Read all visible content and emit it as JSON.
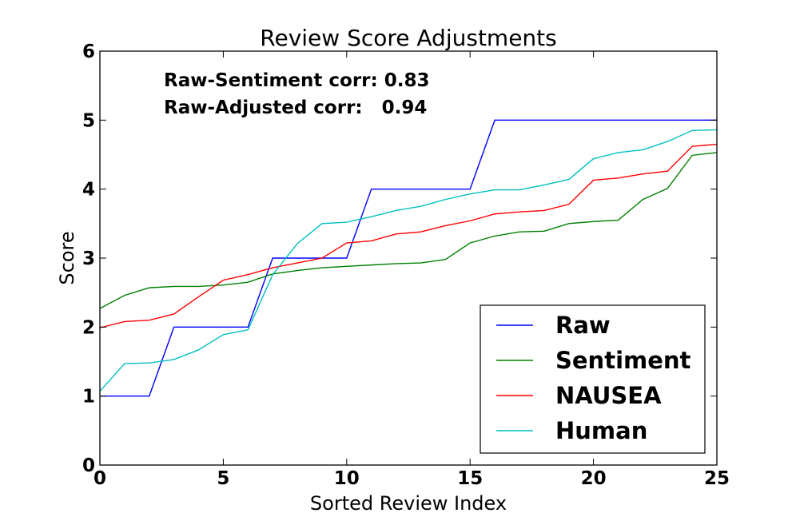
{
  "chart_data": {
    "type": "line",
    "title": "Review Score Adjustments",
    "xlabel": "Sorted Review Index",
    "ylabel": "Score",
    "xlim": [
      0,
      25
    ],
    "ylim": [
      0,
      6
    ],
    "xticks": [
      0,
      5,
      10,
      15,
      20,
      25
    ],
    "yticks": [
      0,
      1,
      2,
      3,
      4,
      5,
      6
    ],
    "grid": false,
    "legend_position": "lower-right",
    "annotations": [
      "Raw-Sentiment corr: 0.83",
      "Raw-Adjusted corr:   0.94"
    ],
    "x": [
      0,
      1,
      2,
      3,
      4,
      5,
      6,
      7,
      8,
      9,
      10,
      11,
      12,
      13,
      14,
      15,
      16,
      17,
      18,
      19,
      20,
      21,
      22,
      23,
      24,
      25
    ],
    "series": [
      {
        "name": "Raw",
        "color": "#0000ff",
        "values": [
          1,
          1,
          1,
          2,
          2,
          2,
          2,
          3,
          3,
          3,
          3,
          4,
          4,
          4,
          4,
          4,
          5,
          5,
          5,
          5,
          5,
          5,
          5,
          5,
          5,
          5
        ]
      },
      {
        "name": "Sentiment",
        "color": "#008000",
        "values": [
          2.27,
          2.46,
          2.57,
          2.59,
          2.59,
          2.61,
          2.65,
          2.77,
          2.82,
          2.86,
          2.88,
          2.9,
          2.92,
          2.93,
          2.98,
          3.22,
          3.32,
          3.38,
          3.39,
          3.5,
          3.53,
          3.55,
          3.85,
          4.01,
          4.49,
          4.53
        ]
      },
      {
        "name": "NAUSEA",
        "color": "#ff0000",
        "values": [
          1.99,
          2.08,
          2.1,
          2.19,
          2.44,
          2.68,
          2.76,
          2.86,
          2.93,
          3.0,
          3.22,
          3.25,
          3.35,
          3.38,
          3.47,
          3.54,
          3.64,
          3.67,
          3.69,
          3.78,
          4.13,
          4.16,
          4.22,
          4.26,
          4.62,
          4.65
        ]
      },
      {
        "name": "Human",
        "color": "#00bfbf",
        "values": [
          1.07,
          1.47,
          1.48,
          1.53,
          1.67,
          1.89,
          1.96,
          2.76,
          3.21,
          3.5,
          3.52,
          3.6,
          3.69,
          3.75,
          3.85,
          3.93,
          3.99,
          3.99,
          4.06,
          4.14,
          4.44,
          4.53,
          4.57,
          4.69,
          4.85,
          4.86
        ]
      }
    ]
  }
}
